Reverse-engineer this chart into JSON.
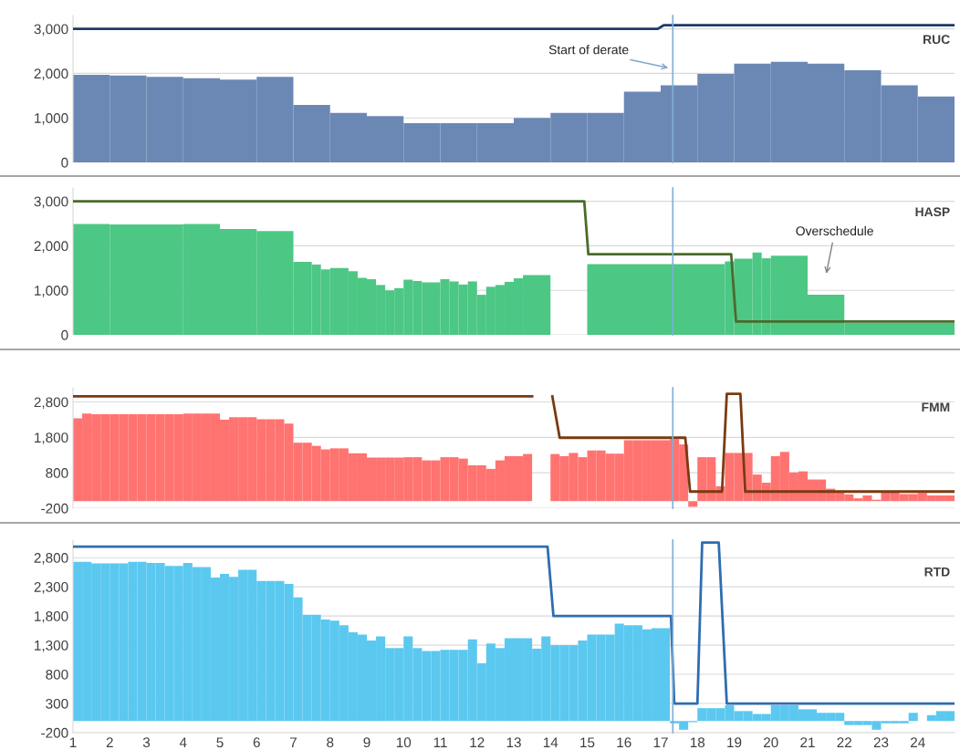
{
  "chart_data": [
    {
      "type": "bar",
      "title": "RUC",
      "xlim": [
        1,
        25
      ],
      "ylim": [
        0,
        3300
      ],
      "yticks": [
        {
          "value": 0,
          "label": "0"
        },
        {
          "value": 1000,
          "label": "1,000"
        },
        {
          "value": 2000,
          "label": "2,000"
        },
        {
          "value": 3000,
          "label": "3,000"
        }
      ],
      "grid": "y",
      "tick_labels": "y",
      "series": [
        {
          "color": "#6b88b5",
          "x": [
            1.5,
            2.5,
            3.5,
            4.5,
            5.5,
            6.5,
            7.5,
            8.5,
            9.5,
            10.5,
            11.5,
            12.5,
            13.5,
            14.5,
            15.5,
            16.5,
            17.5,
            18.5,
            19.5,
            20.5,
            21.5,
            22.5,
            23.5,
            24.5
          ],
          "values": [
            1970,
            1950,
            1920,
            1890,
            1860,
            1920,
            1290,
            1110,
            1040,
            880,
            880,
            880,
            1000,
            1110,
            1110,
            1590,
            1730,
            1990,
            2220,
            2260,
            2220,
            2070,
            1730,
            1480
          ]
        },
        {
          "type": "line",
          "color": "#1f3a6b",
          "x": [
            1,
            16.92,
            17.08,
            25
          ],
          "values": [
            3000,
            3000,
            3080,
            3080
          ]
        }
      ],
      "ref_lines": [
        {
          "axis": "x",
          "value": 17.33,
          "color": "#7fb0d8"
        }
      ],
      "annotations": [
        "Start of derate"
      ]
    },
    {
      "type": "bar",
      "title": "HASP",
      "xlim": [
        1,
        25
      ],
      "ylim": [
        0,
        3300
      ],
      "yticks": [
        {
          "value": 0,
          "label": "0"
        },
        {
          "value": 1000,
          "label": "1,000"
        },
        {
          "value": 2000,
          "label": "2,000"
        },
        {
          "value": 3000,
          "label": "3,000"
        }
      ],
      "grid": "y",
      "tick_labels": "y",
      "series": [
        {
          "color": "#4cc784",
          "x": [
            1.5,
            3,
            4.5,
            5.5,
            6.5,
            7.25,
            7.625,
            7.875,
            8.25,
            8.625,
            8.875,
            9.125,
            9.375,
            9.625,
            9.875,
            10.125,
            10.375,
            10.75,
            11.125,
            11.375,
            11.625,
            11.875,
            12.125,
            12.375,
            12.625,
            12.875,
            13.125,
            13.625,
            14.5,
            16.875,
            18.875,
            19.25,
            19.625,
            19.875,
            20.5,
            21.5,
            23.5
          ],
          "values": [
            2490,
            2480,
            2490,
            2380,
            2330,
            1640,
            1580,
            1470,
            1500,
            1430,
            1280,
            1250,
            1120,
            1000,
            1050,
            1240,
            1210,
            1180,
            1250,
            1200,
            1130,
            1200,
            900,
            1080,
            1120,
            1190,
            1270,
            1340,
            null,
            1590,
            1650,
            1710,
            1850,
            1720,
            1780,
            900,
            270
          ]
        },
        {
          "type": "line",
          "color": "#4a6b2a",
          "x": [
            1,
            14.92,
            15.03,
            18.92,
            19.05,
            25
          ],
          "values": [
            3000,
            3000,
            1810,
            1810,
            300,
            300
          ]
        }
      ],
      "ref_lines": [
        {
          "axis": "x",
          "value": 17.33,
          "color": "#7fb0d8"
        }
      ],
      "annotations": [
        "Overschedule"
      ]
    },
    {
      "type": "bar",
      "title": "FMM",
      "xlim": [
        1,
        25
      ],
      "ylim": [
        -200,
        3200
      ],
      "yticks": [
        {
          "value": -200,
          "label": "-200"
        },
        {
          "value": 800,
          "label": "800"
        },
        {
          "value": 1800,
          "label": "1,800"
        },
        {
          "value": 2800,
          "label": "2,800"
        }
      ],
      "grid": "y",
      "tick_labels": "y",
      "series": [
        {
          "color": "#ff7370",
          "x": [
            1.125,
            1.375,
            1.625,
            1.875,
            2.125,
            2.375,
            2.625,
            2.875,
            3.125,
            3.375,
            3.625,
            3.875,
            4.125,
            4.375,
            4.625,
            4.875,
            5.125,
            5.375,
            5.625,
            5.875,
            6.125,
            6.375,
            6.625,
            6.875,
            7.125,
            7.375,
            7.625,
            7.875,
            8.125,
            8.375,
            8.625,
            8.875,
            9.125,
            9.375,
            9.625,
            9.875,
            10.125,
            10.375,
            10.625,
            10.875,
            11.125,
            11.375,
            11.625,
            11.875,
            12.125,
            12.375,
            12.625,
            12.875,
            13.125,
            13.375,
            13.625,
            13.875,
            14.125,
            14.375,
            14.625,
            14.875,
            15.125,
            15.375,
            15.625,
            15.875,
            16.125,
            16.375,
            16.625,
            16.875,
            17.125,
            17.375,
            17.625,
            17.875,
            18.125,
            18.375,
            18.625,
            18.875,
            19.125,
            19.375,
            19.625,
            19.875,
            20.125,
            20.375,
            20.625,
            20.875,
            21.125,
            21.375,
            21.625,
            21.875,
            22.125,
            22.375,
            22.625,
            22.875,
            23.125,
            23.375,
            23.625,
            23.875,
            24.125,
            24.375,
            24.625,
            24.875
          ],
          "values": [
            2340,
            2470,
            2450,
            2450,
            2450,
            2450,
            2450,
            2450,
            2450,
            2450,
            2450,
            2450,
            2470,
            2470,
            2470,
            2470,
            2300,
            2370,
            2370,
            2370,
            2310,
            2310,
            2310,
            2190,
            1650,
            1650,
            1560,
            1460,
            1490,
            1490,
            1350,
            1350,
            1230,
            1230,
            1230,
            1230,
            1240,
            1240,
            1150,
            1150,
            1240,
            1240,
            1200,
            1010,
            1010,
            910,
            1150,
            1270,
            1270,
            1330,
            null,
            null,
            1330,
            1270,
            1360,
            1240,
            1430,
            1430,
            1340,
            1340,
            1720,
            1720,
            1720,
            1720,
            1720,
            1750,
            1600,
            -160,
            1240,
            1240,
            420,
            1360,
            1360,
            1360,
            750,
            520,
            1270,
            1390,
            810,
            840,
            610,
            610,
            350,
            260,
            190,
            80,
            160,
            40,
            260,
            260,
            200,
            200,
            230,
            160,
            160,
            160
          ]
        },
        {
          "type": "line",
          "color": "#7a3a10",
          "x": [
            1,
            13.5,
            13.8,
            14.05,
            14.25,
            17.67,
            17.8,
            18.67,
            18.8,
            19.17,
            19.3,
            25
          ],
          "values": [
            2960,
            2960,
            null,
            2960,
            1790,
            1790,
            270,
            270,
            3030,
            3030,
            270,
            270
          ]
        }
      ],
      "ref_lines": [
        {
          "axis": "x",
          "value": 17.33,
          "color": "#7fb0d8"
        }
      ]
    },
    {
      "type": "bar",
      "title": "RTD",
      "xlim": [
        1,
        25
      ],
      "ylim": [
        -200,
        3100
      ],
      "yticks": [
        {
          "value": -200,
          "label": "-200"
        },
        {
          "value": 300,
          "label": "300"
        },
        {
          "value": 800,
          "label": "800"
        },
        {
          "value": 1300,
          "label": "1,300"
        },
        {
          "value": 1800,
          "label": "1,800"
        },
        {
          "value": 2300,
          "label": "2,300"
        },
        {
          "value": 2800,
          "label": "2,800"
        }
      ],
      "xticks": [
        1,
        2,
        3,
        4,
        5,
        6,
        7,
        8,
        9,
        10,
        11,
        12,
        13,
        14,
        15,
        16,
        17,
        18,
        19,
        20,
        21,
        22,
        23,
        24
      ],
      "grid": "y",
      "series": [
        {
          "color": "#5bc8f0",
          "x": [
            1.125,
            1.375,
            1.625,
            1.875,
            2.125,
            2.375,
            2.625,
            2.875,
            3.125,
            3.375,
            3.625,
            3.875,
            4.125,
            4.375,
            4.625,
            4.875,
            5.125,
            5.375,
            5.625,
            5.875,
            6.125,
            6.375,
            6.625,
            6.875,
            7.125,
            7.375,
            7.625,
            7.875,
            8.125,
            8.375,
            8.625,
            8.875,
            9.125,
            9.375,
            9.625,
            9.875,
            10.125,
            10.375,
            10.625,
            10.875,
            11.125,
            11.375,
            11.625,
            11.875,
            12.125,
            12.375,
            12.625,
            12.875,
            13.125,
            13.375,
            13.625,
            13.875,
            14.125,
            14.375,
            14.625,
            14.875,
            15.125,
            15.375,
            15.625,
            15.875,
            16.125,
            16.375,
            16.625,
            16.875,
            17.125,
            17.375,
            17.625,
            17.875,
            18.125,
            18.375,
            18.625,
            18.875,
            19.125,
            19.375,
            19.625,
            19.875,
            20.125,
            20.375,
            20.625,
            20.875,
            21.125,
            21.375,
            21.625,
            21.875,
            22.125,
            22.375,
            22.625,
            22.875,
            23.125,
            23.375,
            23.625,
            23.875,
            24.125,
            24.375,
            24.625,
            24.875
          ],
          "values": [
            2730,
            2730,
            2700,
            2700,
            2700,
            2700,
            2730,
            2730,
            2710,
            2710,
            2660,
            2660,
            2710,
            2640,
            2640,
            2460,
            2520,
            2470,
            2590,
            2590,
            2400,
            2400,
            2400,
            2350,
            2120,
            1820,
            1820,
            1740,
            1720,
            1640,
            1520,
            1480,
            1380,
            1450,
            1250,
            1250,
            1450,
            1250,
            1200,
            1200,
            1220,
            1220,
            1220,
            1400,
            990,
            1330,
            1250,
            1420,
            1420,
            1420,
            1240,
            1450,
            1300,
            1300,
            1300,
            1380,
            1480,
            1480,
            1480,
            1670,
            1640,
            1640,
            1570,
            1590,
            1590,
            -40,
            -150,
            -20,
            220,
            220,
            220,
            270,
            170,
            170,
            120,
            120,
            270,
            270,
            270,
            200,
            200,
            140,
            140,
            140,
            -70,
            -70,
            -70,
            -150,
            -40,
            -40,
            -40,
            140,
            null,
            100,
            170,
            170
          ]
        },
        {
          "type": "line",
          "color": "#2e6db0",
          "x": [
            1,
            13.92,
            14.08,
            17.28,
            17.37,
            18,
            18.13,
            18.58,
            18.8,
            25
          ],
          "values": [
            2990,
            2990,
            1800,
            1800,
            300,
            300,
            3060,
            3060,
            300,
            300
          ]
        }
      ],
      "ref_lines": [
        {
          "axis": "x",
          "value": 17.33,
          "color": "#7fb0d8"
        }
      ]
    }
  ]
}
